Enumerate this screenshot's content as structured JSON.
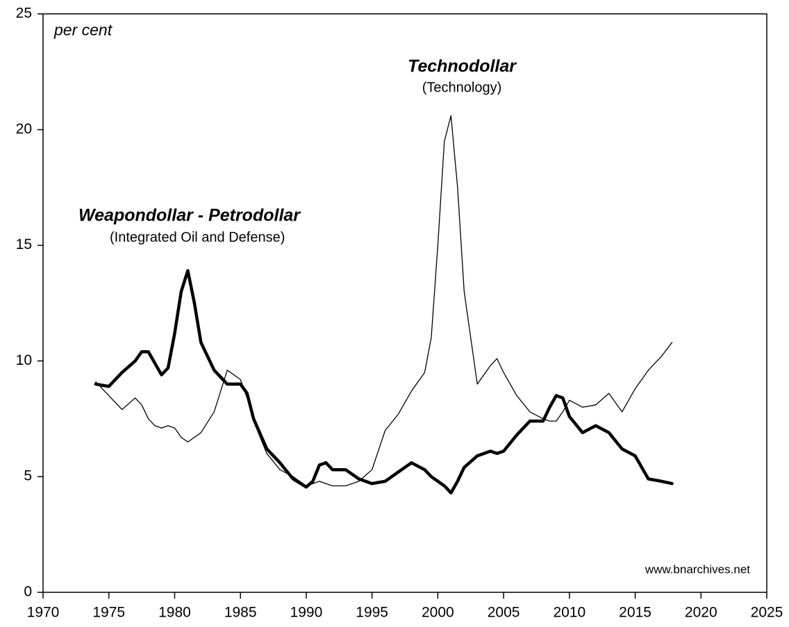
{
  "chart_data": {
    "type": "line",
    "annotations": [
      "per cent",
      "Technodollar",
      "(Technology)",
      "Weapondollar - Petrodollar",
      "(Integrated Oil and Defense)",
      "www.bnarchives.net"
    ],
    "x": [
      1974,
      1975,
      1976,
      1977,
      1977.5,
      1978,
      1978.5,
      1979,
      1979.5,
      1980,
      1980.5,
      1981,
      1981.5,
      1982,
      1983,
      1984,
      1985,
      1985.5,
      1986,
      1987,
      1988,
      1989,
      1990,
      1990.5,
      1991,
      1991.5,
      1992,
      1993,
      1994,
      1995,
      1996,
      1997,
      1998,
      1999,
      1999.5,
      2000,
      2000.5,
      2001,
      2001.5,
      2002,
      2003,
      2004,
      2004.5,
      2005,
      2006,
      2007,
      2008,
      2008.5,
      2009,
      2009.5,
      2010,
      2011,
      2012,
      2013,
      2014,
      2015,
      2016,
      2017,
      2017.8
    ],
    "series": [
      {
        "color": "#000000",
        "width": "thick",
        "values": [
          9.0,
          8.9,
          9.5,
          10.0,
          10.4,
          10.4,
          9.9,
          9.4,
          9.7,
          11.2,
          13.0,
          13.9,
          12.5,
          10.8,
          9.6,
          9.0,
          9.0,
          8.6,
          7.5,
          6.2,
          5.6,
          4.9,
          4.55,
          4.8,
          5.5,
          5.6,
          5.3,
          5.3,
          4.9,
          4.7,
          4.8,
          5.2,
          5.6,
          5.3,
          5.0,
          4.8,
          4.6,
          4.3,
          4.8,
          5.4,
          5.9,
          6.1,
          6.0,
          6.1,
          6.8,
          7.4,
          7.4,
          8.0,
          8.5,
          8.4,
          7.6,
          6.9,
          7.2,
          6.9,
          6.2,
          5.9,
          4.9,
          4.8,
          4.7
        ]
      },
      {
        "color": "#000000",
        "width": "thin",
        "values": [
          9.1,
          8.5,
          7.9,
          8.4,
          8.1,
          7.5,
          7.2,
          7.1,
          7.2,
          7.1,
          6.7,
          6.5,
          6.7,
          6.9,
          7.8,
          9.6,
          9.2,
          8.4,
          7.4,
          6.0,
          5.3,
          5.0,
          4.6,
          4.7,
          4.8,
          4.7,
          4.6,
          4.6,
          4.8,
          5.3,
          7.0,
          7.7,
          8.7,
          9.5,
          11.0,
          15.0,
          19.5,
          20.6,
          17.5,
          13.0,
          9.0,
          9.8,
          10.1,
          9.5,
          8.5,
          7.8,
          7.5,
          7.4,
          7.4,
          7.8,
          8.3,
          8.0,
          8.1,
          8.6,
          7.8,
          8.8,
          9.6,
          10.2,
          10.8
        ]
      }
    ],
    "xlim": [
      1970,
      2025
    ],
    "xticks": [
      1970,
      1975,
      1980,
      1985,
      1990,
      1995,
      2000,
      2005,
      2010,
      2015,
      2020,
      2025
    ],
    "ylim": [
      0,
      25
    ],
    "yticks": [
      0,
      5,
      10,
      15,
      20,
      25
    ],
    "grid": false
  }
}
